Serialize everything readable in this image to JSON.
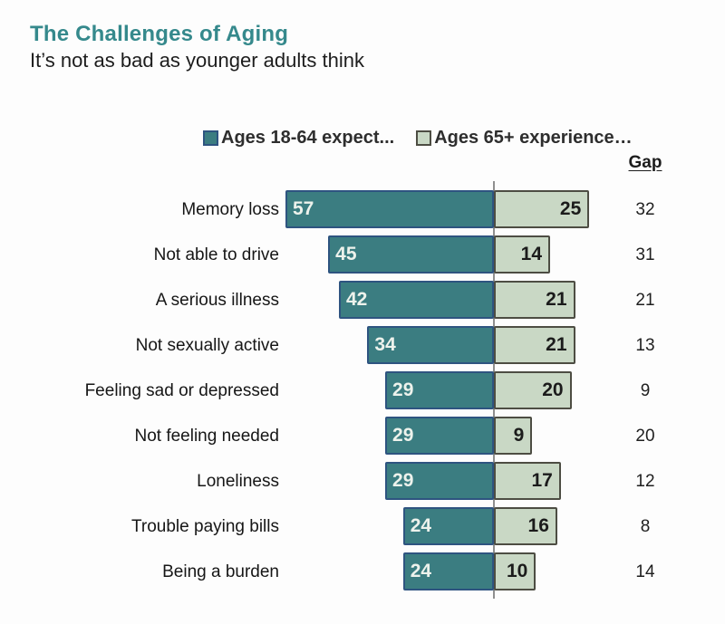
{
  "header": {
    "title": "The Challenges of Aging",
    "subtitle": "It’s not as bad as younger adults think"
  },
  "colors": {
    "title_teal": "#35898c",
    "expect_fill": "#3b7d81",
    "expect_border": "#2e5480",
    "experience_fill": "#c9d8c5",
    "experience_border": "#4d4d43",
    "center_line": "#8f8f8f"
  },
  "chart_data": {
    "type": "bar",
    "orientation": "horizontal-diverging",
    "title": "The Challenges of Aging",
    "subtitle": "It’s not as bad as younger adults think",
    "gap_column_label": "Gap",
    "categories": [
      "Memory loss",
      "Not able to drive",
      "A serious illness",
      "Not sexually active",
      "Feeling sad or depressed",
      "Not feeling needed",
      "Loneliness",
      "Trouble paying bills",
      "Being a burden"
    ],
    "series": [
      {
        "name": "Ages 18-64 expect...",
        "color": "#3b7d81",
        "values": [
          57,
          45,
          42,
          34,
          29,
          29,
          29,
          24,
          24
        ]
      },
      {
        "name": "Ages 65+ experience…",
        "color": "#c9d8c5",
        "values": [
          25,
          14,
          21,
          21,
          20,
          9,
          17,
          16,
          10
        ]
      }
    ],
    "gaps": [
      32,
      31,
      21,
      13,
      9,
      20,
      12,
      8,
      14
    ],
    "value_labels_shown": true,
    "legend_position": "top",
    "axis_shown": false
  }
}
